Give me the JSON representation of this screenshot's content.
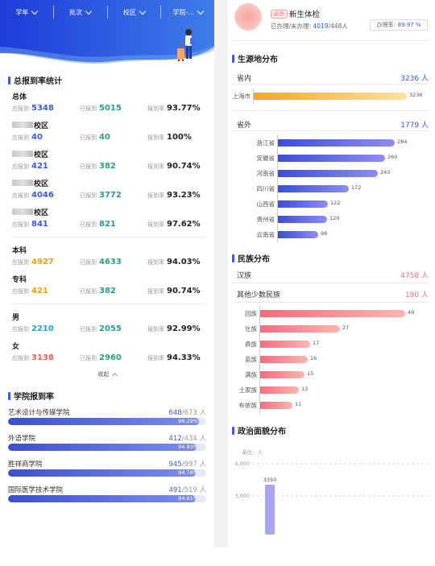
{
  "filters": [
    "学年",
    "批次",
    "校区",
    "学院-..."
  ],
  "overall": {
    "title": "总报到率统计",
    "labels": {
      "should": "应报到",
      "reported": "已报到",
      "rate": "报到率"
    },
    "groups": [
      {
        "name": "总体",
        "masked": false,
        "should": "5348",
        "reported": "5015",
        "rate": "93.77%"
      },
      {
        "name": "校区",
        "masked": true,
        "should": "40",
        "reported": "40",
        "rate": "100%"
      },
      {
        "name": "校区",
        "masked": true,
        "should": "421",
        "reported": "382",
        "rate": "90.74%"
      },
      {
        "name": "校区",
        "masked": true,
        "should": "4046",
        "reported": "3772",
        "rate": "93.23%"
      },
      {
        "name": "校区",
        "masked": true,
        "should": "841",
        "reported": "821",
        "rate": "97.62%"
      }
    ],
    "level_groups": [
      {
        "name": "本科",
        "should": "4927",
        "reported": "4633",
        "rate": "94.03%"
      },
      {
        "name": "专科",
        "should": "421",
        "reported": "382",
        "rate": "90.74%"
      }
    ],
    "gender_groups": [
      {
        "name": "男",
        "should": "2210",
        "reported": "2055",
        "rate": "92.99%"
      },
      {
        "name": "女",
        "should": "3138",
        "reported": "2960",
        "rate": "94.33%"
      }
    ],
    "collapse_label": "收起"
  },
  "college": {
    "title": "学院报到率",
    "items": [
      {
        "name": "艺术设计与传媒学院",
        "reported": "648",
        "total": "/673 人",
        "pct_label": "96.29%",
        "pct": 96.29
      },
      {
        "name": "外语学院",
        "reported": "412",
        "total": "/434 人",
        "pct_label": "94.93%",
        "pct": 94.93
      },
      {
        "name": "胜祥商学院",
        "reported": "945",
        "total": "/997 人",
        "pct_label": "94.78%",
        "pct": 94.78
      },
      {
        "name": "国际医学技术学院",
        "reported": "491",
        "total": "/519 人",
        "pct_label": "94.61%",
        "pct": 94.61
      }
    ]
  },
  "task": {
    "tag": "必办",
    "name": "新生体检",
    "done_label": "已办理/未办理:",
    "done_value": "4019",
    "done_total": "/448人",
    "rate_label": "办理率:",
    "rate_value": "89.97 %"
  },
  "origin": {
    "title": "生源地分布",
    "in_province_label": "省内",
    "in_province_value": "3236 人",
    "in_province_bars": [
      {
        "name": "上海市",
        "value": 3236
      }
    ],
    "out_province_label": "省外",
    "out_province_value": "1779 人",
    "out_province_bars": [
      {
        "name": "浙江省",
        "value": 284
      },
      {
        "name": "安徽省",
        "value": 260
      },
      {
        "name": "河南省",
        "value": 243
      },
      {
        "name": "四川省",
        "value": 172
      },
      {
        "name": "山西省",
        "value": 122
      },
      {
        "name": "贵州省",
        "value": 120
      },
      {
        "name": "云南省",
        "value": 98
      }
    ]
  },
  "ethnic": {
    "title": "民族分布",
    "han_label": "汉族",
    "han_value": "4758 人",
    "other_label": "其他少数民族",
    "other_value": "190 人",
    "bars": [
      {
        "name": "回族",
        "value": 49
      },
      {
        "name": "壮族",
        "value": 27
      },
      {
        "name": "彝族",
        "value": 17
      },
      {
        "name": "苗族",
        "value": 16
      },
      {
        "name": "满族",
        "value": 15
      },
      {
        "name": "土家族",
        "value": 13
      },
      {
        "name": "布依族",
        "value": 11
      }
    ]
  },
  "political": {
    "title": "政治面貌分布",
    "unit_label": "单位：人",
    "y_ticks": [
      "4,000",
      "3,000"
    ],
    "bar_label": "3350"
  },
  "chart_data": [
    {
      "type": "bar",
      "title": "省内",
      "categories": [
        "上海市"
      ],
      "values": [
        3236
      ],
      "orientation": "horizontal"
    },
    {
      "type": "bar",
      "title": "省外",
      "categories": [
        "浙江省",
        "安徽省",
        "河南省",
        "四川省",
        "山西省",
        "贵州省",
        "云南省"
      ],
      "values": [
        284,
        260,
        243,
        172,
        122,
        120,
        98
      ],
      "orientation": "horizontal"
    },
    {
      "type": "bar",
      "title": "其他少数民族",
      "categories": [
        "回族",
        "壮族",
        "彝族",
        "苗族",
        "满族",
        "土家族",
        "布依族"
      ],
      "values": [
        49,
        27,
        17,
        16,
        15,
        13,
        11
      ],
      "orientation": "horizontal"
    },
    {
      "type": "bar",
      "title": "政治面貌分布",
      "categories": [
        ""
      ],
      "values": [
        3350
      ],
      "ylabel": "单位：人",
      "ylim": [
        0,
        4000
      ]
    }
  ],
  "colors": {
    "accent": "#3b5bdb",
    "orange": "#f5a623",
    "pink": "#f76c7e",
    "purple": "#a9a5f0"
  }
}
